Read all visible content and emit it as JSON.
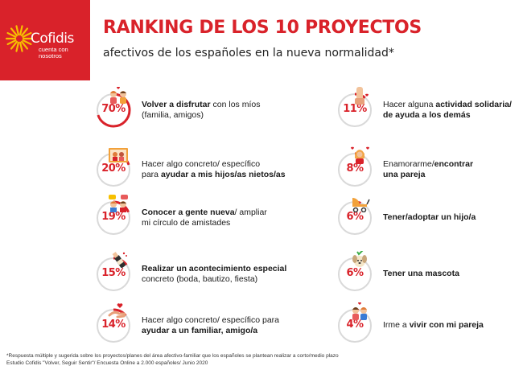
{
  "brand": {
    "name": "Cofidis",
    "tagline_1": "cuenta con",
    "tagline_2": "nosotros",
    "accent_color": "#d9222a",
    "sun_color": "#f7c000"
  },
  "header": {
    "title": "RANKING DE LOS 10 PROYECTOS",
    "subtitle": "afectivos de los españoles en la nueva normalidad*"
  },
  "items": [
    {
      "pct": "70%",
      "value": 70,
      "icon": "couple-heart-icon",
      "parts": [
        {
          "t": "Volver a disfrutar",
          "b": true
        },
        {
          "t": " con los míos",
          "b": false
        }
      ],
      "line2": [
        {
          "t": "(familia, amigos)",
          "b": false
        }
      ]
    },
    {
      "pct": "20%",
      "value": 20,
      "icon": "family-photo-icon",
      "parts": [
        {
          "t": "Hacer algo concreto/ específico",
          "b": false
        }
      ],
      "line2": [
        {
          "t": "para ",
          "b": false
        },
        {
          "t": "ayudar a mis hijos/as nietos/as",
          "b": true
        }
      ]
    },
    {
      "pct": "19%",
      "value": 19,
      "icon": "chat-people-icon",
      "parts": [
        {
          "t": "Conocer a gente nueva",
          "b": true
        },
        {
          "t": "/ ampliar",
          "b": false
        }
      ],
      "line2": [
        {
          "t": "mi círculo de amistades",
          "b": false
        }
      ]
    },
    {
      "pct": "15%",
      "value": 15,
      "icon": "champagne-icon",
      "parts": [
        {
          "t": "Realizar un acontecimiento especial",
          "b": true
        }
      ],
      "line2": [
        {
          "t": "concreto (boda, bautizo, fiesta)",
          "b": false
        }
      ]
    },
    {
      "pct": "14%",
      "value": 14,
      "icon": "helping-hands-icon",
      "parts": [
        {
          "t": "Hacer algo concreto/ específico para",
          "b": false
        }
      ],
      "line2": [
        {
          "t": "ayudar a un familiar, amigo/a",
          "b": true
        }
      ]
    },
    {
      "pct": "11%",
      "value": 11,
      "icon": "raised-hand-heart-icon",
      "parts": [
        {
          "t": "Hacer alguna ",
          "b": false
        },
        {
          "t": "actividad solidaria/",
          "b": true
        }
      ],
      "line2": [
        {
          "t": "de ayuda a los demás",
          "b": true
        }
      ]
    },
    {
      "pct": "8%",
      "value": 8,
      "icon": "woman-hearts-icon",
      "parts": [
        {
          "t": "Enamorarme/",
          "b": false
        },
        {
          "t": "encontrar",
          "b": true
        }
      ],
      "line2": [
        {
          "t": "una pareja",
          "b": true
        }
      ]
    },
    {
      "pct": "6%",
      "value": 6,
      "icon": "baby-stroller-icon",
      "parts": [
        {
          "t": "Tener/adoptar un hijo/a",
          "b": true
        }
      ],
      "line2": []
    },
    {
      "pct": "6%",
      "value": 6,
      "icon": "dog-check-icon",
      "parts": [
        {
          "t": "Tener una mascota",
          "b": true
        }
      ],
      "line2": []
    },
    {
      "pct": "4%",
      "value": 4,
      "icon": "couple-home-icon",
      "parts": [
        {
          "t": "Irme a ",
          "b": false
        },
        {
          "t": "vivir con mi pareja",
          "b": true
        }
      ],
      "line2": []
    }
  ],
  "footnote": {
    "line1": "*Respuesta múltiple y sugerida sobre los proyectos/planes del área afectivo-familiar que los españoles se plantean realizar a corto/medio plazo",
    "line2": "Estudio Cofidis \"Volver, Seguir Sentir\"/ Encuesta Online a 2.000 españoles/ Junio 2020"
  }
}
